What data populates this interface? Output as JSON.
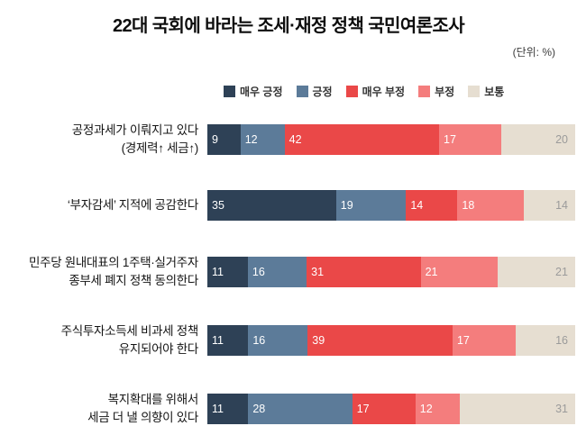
{
  "chart_data": {
    "type": "bar",
    "stacked": true,
    "orientation": "horizontal",
    "title": "22대 국회에 바라는 조세·재정 정책 국민여론조사",
    "unit_label": "(단위: %)",
    "xlim": [
      0,
      100
    ],
    "legend_position": "top",
    "grid": false,
    "categories": [
      {
        "lines": [
          "공정과세가 이뤄지고 있다",
          "(경제력↑ 세금↑)"
        ]
      },
      {
        "lines": [
          "‘부자감세’ 지적에 공감한다"
        ]
      },
      {
        "lines": [
          "민주당 원내대표의 1주택·실거주자",
          "종부세 폐지 정책 동의한다"
        ]
      },
      {
        "lines": [
          "주식투자소득세 비과세 정책",
          "유지되어야 한다"
        ]
      },
      {
        "lines": [
          "복지확대를 위해서",
          "세금 더 낼 의향이 있다"
        ]
      }
    ],
    "series": [
      {
        "name": "매우 긍정",
        "color": "#2e4156",
        "text_color": "#ffffff",
        "values": [
          9,
          35,
          11,
          11,
          11
        ]
      },
      {
        "name": "긍정",
        "color": "#5c7b99",
        "text_color": "#ffffff",
        "values": [
          12,
          19,
          16,
          16,
          28
        ]
      },
      {
        "name": "매우 부정",
        "color": "#ea4848",
        "text_color": "#ffffff",
        "values": [
          42,
          14,
          31,
          39,
          17
        ]
      },
      {
        "name": "부정",
        "color": "#f47d7d",
        "text_color": "#ffffff",
        "values": [
          17,
          18,
          21,
          17,
          12
        ]
      },
      {
        "name": "보통",
        "color": "#e6ded1",
        "text_color": "#9b9b9b",
        "value_align": "right",
        "values": [
          20,
          14,
          21,
          16,
          31
        ]
      }
    ]
  }
}
